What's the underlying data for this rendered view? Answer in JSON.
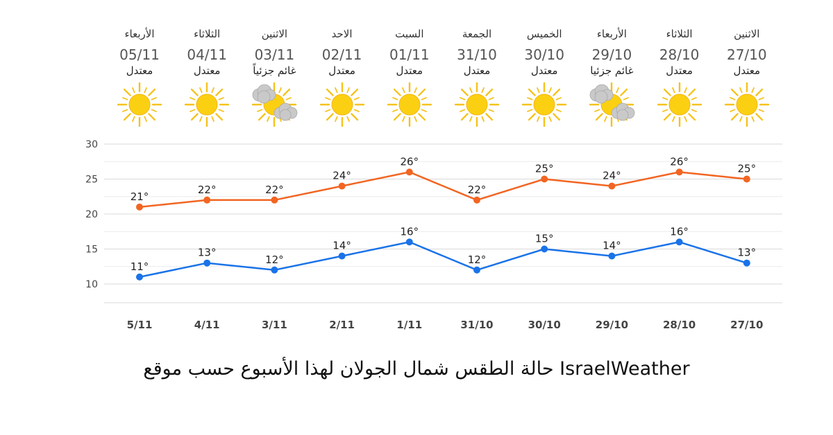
{
  "days": [
    {
      "name": "الأربعاء",
      "date": "05/11",
      "condition": "معتدل",
      "icon": "sun-icon"
    },
    {
      "name": "الثلاثاء",
      "date": "04/11",
      "condition": "معتدل",
      "icon": "sun-icon"
    },
    {
      "name": "الاثنين",
      "date": "03/11",
      "condition": "غائم جزئياً",
      "icon": "partly-cloudy-icon"
    },
    {
      "name": "الاحد",
      "date": "02/11",
      "condition": "معتدل",
      "icon": "sun-icon"
    },
    {
      "name": "السبت",
      "date": "01/11",
      "condition": "معتدل",
      "icon": "sun-icon"
    },
    {
      "name": "الجمعة",
      "date": "31/10",
      "condition": "معتدل",
      "icon": "sun-icon"
    },
    {
      "name": "الخميس",
      "date": "30/10",
      "condition": "معتدل",
      "icon": "sun-icon"
    },
    {
      "name": "الأربعاء",
      "date": "29/10",
      "condition": "غائم جزئيا",
      "icon": "partly-cloudy-icon"
    },
    {
      "name": "الثلاثاء",
      "date": "28/10",
      "condition": "معتدل",
      "icon": "sun-icon"
    },
    {
      "name": "الاثنين",
      "date": "27/10",
      "condition": "معتدل",
      "icon": "sun-icon"
    }
  ],
  "colors": {
    "high": "#f26522",
    "low": "#1a73e8",
    "sun": "#fcd012",
    "sun_ray": "#f6c21b",
    "cloud": "#c9c9c9",
    "grid": "#d9d9d9"
  },
  "chart_data": {
    "type": "line",
    "categories": [
      "5/11",
      "4/11",
      "3/11",
      "2/11",
      "1/11",
      "31/10",
      "30/10",
      "29/10",
      "28/10",
      "27/10"
    ],
    "series": [
      {
        "values": [
          21,
          22,
          22,
          24,
          26,
          22,
          25,
          24,
          26,
          25
        ],
        "color": "#f26522"
      },
      {
        "values": [
          11,
          13,
          12,
          14,
          16,
          12,
          15,
          14,
          16,
          13
        ],
        "color": "#1a73e8"
      }
    ],
    "value_suffix": "°",
    "ylim": [
      10,
      30
    ],
    "yticks": [
      10,
      15,
      20,
      25,
      30
    ],
    "grid": true,
    "xlabel": "",
    "ylabel": ""
  },
  "caption": "حالة الطقس شمال الجولان لهذا الأسبوع حسب موقع IsraelWeather"
}
